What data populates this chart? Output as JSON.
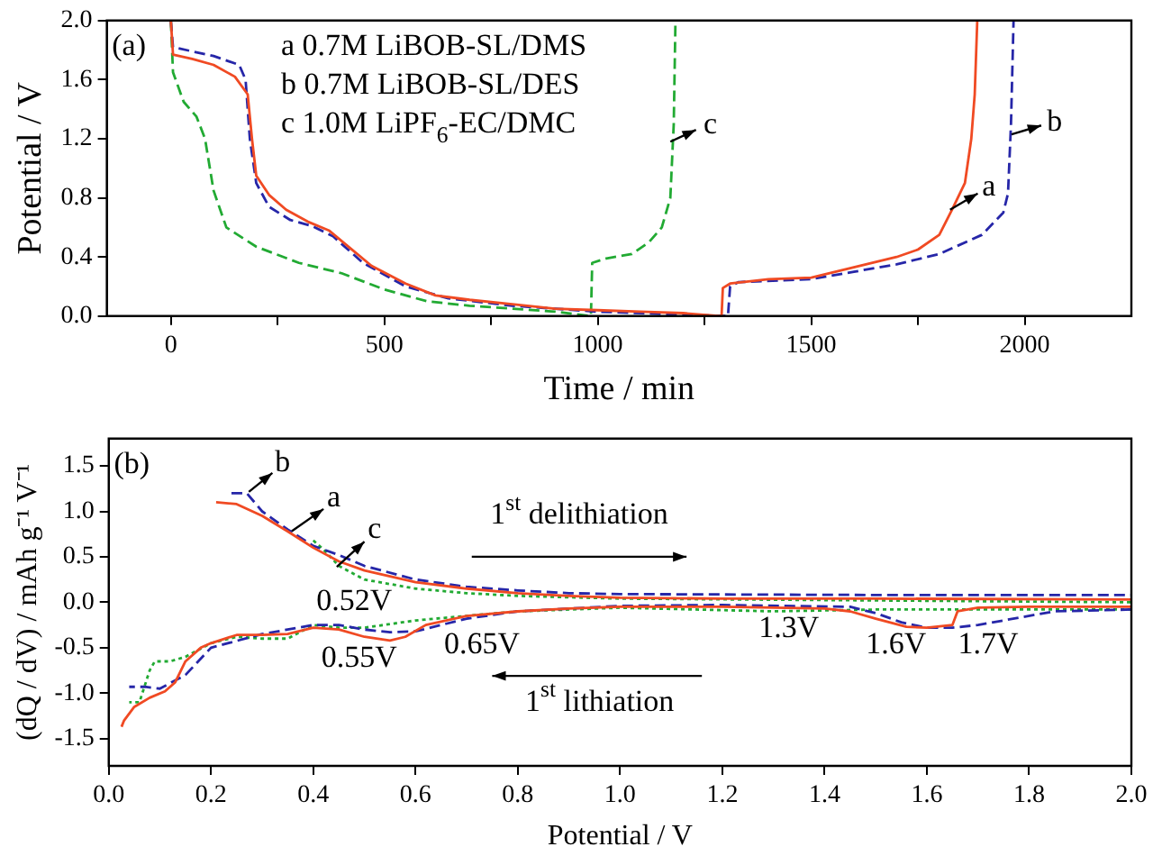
{
  "chart_data": [
    {
      "type": "line",
      "xlabel": "Time / min",
      "ylabel": "Potential / V",
      "xlim": [
        -150,
        2250
      ],
      "ylim": [
        0,
        2.0
      ],
      "xticks": [
        0,
        500,
        1000,
        1500,
        2000,
        {
          "value": 250,
          "label": null
        },
        {
          "value": 750,
          "label": null
        },
        {
          "value": 1250,
          "label": null
        },
        {
          "value": 1750,
          "label": null
        }
      ],
      "yticks": [
        {
          "value": 0,
          "label": "0.0"
        },
        0.4,
        0.8,
        1.2,
        1.6,
        {
          "value": 2.0,
          "label": "2.0"
        }
      ],
      "legend": false,
      "grid": false,
      "annotations": [
        "(a)",
        "a 0.7M LiBOB-SL/DMS",
        "b 0.7M LiBOB-SL/DES",
        "c 1.0M LiPF$_{6}$-EC/DMC",
        "c",
        "b",
        "a"
      ],
      "series": [
        {
          "color": "#f04a23",
          "line_style": "solid",
          "x": [
            0,
            5,
            50,
            100,
            150,
            180,
            190,
            200,
            230,
            270,
            320,
            370,
            420,
            470,
            550,
            620,
            700,
            800,
            900,
            1000,
            1100,
            1200,
            1290,
            1293,
            1310,
            1400,
            1500,
            1600,
            1700,
            1750,
            1800,
            1830,
            1860,
            1875,
            1883,
            1889
          ],
          "values": [
            2.0,
            1.77,
            1.74,
            1.7,
            1.62,
            1.5,
            1.2,
            0.95,
            0.82,
            0.72,
            0.64,
            0.58,
            0.46,
            0.34,
            0.22,
            0.14,
            0.11,
            0.08,
            0.05,
            0.04,
            0.03,
            0.02,
            0.0,
            0.19,
            0.22,
            0.25,
            0.26,
            0.33,
            0.4,
            0.45,
            0.55,
            0.72,
            0.9,
            1.2,
            1.5,
            2.0
          ]
        },
        {
          "color": "#2626a8",
          "line_style": "dashed",
          "x": [
            0,
            5,
            100,
            160,
            175,
            185,
            200,
            230,
            280,
            330,
            380,
            450,
            550,
            650,
            800,
            1000,
            1200,
            1305,
            1310,
            1330,
            1500,
            1600,
            1700,
            1800,
            1900,
            1950,
            1961,
            1968,
            1974
          ],
          "values": [
            2.0,
            1.82,
            1.76,
            1.7,
            1.6,
            1.2,
            0.9,
            0.74,
            0.65,
            0.61,
            0.54,
            0.36,
            0.2,
            0.12,
            0.07,
            0.03,
            0.01,
            0.0,
            0.2,
            0.23,
            0.25,
            0.3,
            0.35,
            0.42,
            0.55,
            0.7,
            0.83,
            1.3,
            2.0
          ]
        },
        {
          "color": "#22aa33",
          "line_style": "dashed",
          "x": [
            0,
            5,
            30,
            60,
            80,
            100,
            130,
            200,
            300,
            400,
            500,
            600,
            700,
            800,
            900,
            984,
            987,
            1020,
            1080,
            1120,
            1150,
            1170,
            1178,
            1182
          ],
          "values": [
            2.0,
            1.65,
            1.45,
            1.35,
            1.2,
            0.85,
            0.6,
            0.47,
            0.36,
            0.29,
            0.18,
            0.1,
            0.07,
            0.05,
            0.03,
            0.0,
            0.36,
            0.39,
            0.42,
            0.5,
            0.6,
            0.8,
            1.3,
            2.0
          ]
        }
      ]
    },
    {
      "type": "line",
      "xlabel": "Potential / V",
      "ylabel": "(dQ / dV) / mAh g⁻¹ V⁻¹",
      "xlim": [
        0,
        2.0
      ],
      "ylim": [
        -1.8,
        1.8
      ],
      "xticks": [
        {
          "value": 0,
          "label": "0.0"
        },
        0.2,
        0.4,
        0.6,
        0.8,
        {
          "value": 1,
          "label": "1.0"
        },
        1.2,
        1.4,
        1.6,
        1.8,
        {
          "value": 2,
          "label": "2.0"
        }
      ],
      "yticks": [
        -1.5,
        {
          "value": -1,
          "label": "-1.0"
        },
        -0.5,
        {
          "value": 0,
          "label": "0.0"
        },
        0.5,
        {
          "value": 1,
          "label": "1.0"
        },
        1.5
      ],
      "legend": false,
      "grid": false,
      "annotations": [
        "(b)",
        "1$^{st}$ delithiation",
        "1$^{st}$ lithiation",
        "0.52V",
        "0.55V",
        "0.65V",
        "1.3V",
        "1.6V",
        "1.7V",
        "b",
        "a",
        "c"
      ],
      "series": [
        {
          "color": "#f04a23",
          "line_style": "solid",
          "x": [
            2.0,
            1.8,
            1.7,
            1.66,
            1.65,
            1.6,
            1.56,
            1.5,
            1.45,
            1.4,
            1.2,
            1.0,
            0.9,
            0.8,
            0.7,
            0.62,
            0.58,
            0.55,
            0.5,
            0.45,
            0.4,
            0.35,
            0.3,
            0.25,
            0.2,
            0.18,
            0.15,
            0.13,
            0.11,
            0.08,
            0.05,
            0.03,
            0.025,
            null,
            0.21,
            0.25,
            0.3,
            0.35,
            0.4,
            0.45,
            0.5,
            0.6,
            0.7,
            0.8,
            0.9,
            1.0,
            1.2,
            1.5,
            2.0
          ],
          "values": [
            -0.05,
            -0.05,
            -0.06,
            -0.1,
            -0.25,
            -0.28,
            -0.27,
            -0.18,
            -0.1,
            -0.07,
            -0.05,
            -0.05,
            -0.07,
            -0.1,
            -0.15,
            -0.25,
            -0.38,
            -0.42,
            -0.38,
            -0.3,
            -0.28,
            -0.35,
            -0.36,
            -0.36,
            -0.45,
            -0.5,
            -0.65,
            -0.88,
            -0.98,
            -1.05,
            -1.15,
            -1.3,
            -1.37,
            null,
            1.1,
            1.08,
            0.95,
            0.78,
            0.6,
            0.45,
            0.35,
            0.22,
            0.15,
            0.1,
            0.07,
            0.05,
            0.04,
            0.04,
            0.03
          ]
        },
        {
          "color": "#2626a8",
          "line_style": "dashed",
          "x": [
            2.0,
            1.85,
            1.75,
            1.7,
            1.65,
            1.6,
            1.55,
            1.5,
            1.45,
            1.2,
            1.0,
            0.8,
            0.7,
            0.65,
            0.6,
            0.55,
            0.5,
            0.45,
            0.4,
            0.3,
            0.2,
            0.15,
            0.1,
            0.07,
            0.04,
            null,
            0.24,
            0.27,
            0.3,
            0.35,
            0.4,
            0.45,
            0.5,
            0.6,
            0.7,
            0.8,
            0.9,
            1.0,
            1.5,
            2.0
          ],
          "values": [
            -0.08,
            -0.1,
            -0.2,
            -0.25,
            -0.28,
            -0.28,
            -0.22,
            -0.12,
            -0.05,
            -0.03,
            -0.04,
            -0.1,
            -0.18,
            -0.25,
            -0.32,
            -0.33,
            -0.3,
            -0.25,
            -0.25,
            -0.35,
            -0.5,
            -0.8,
            -0.95,
            -0.93,
            -0.93,
            null,
            1.2,
            1.2,
            1.0,
            0.8,
            0.62,
            0.52,
            0.4,
            0.25,
            0.17,
            0.13,
            0.1,
            0.09,
            0.08,
            0.08
          ]
        },
        {
          "color": "#22aa33",
          "line_style": "dotted",
          "x": [
            2.0,
            1.5,
            1.3,
            1.0,
            0.8,
            0.6,
            0.5,
            0.45,
            0.4,
            0.35,
            0.3,
            0.25,
            0.2,
            0.15,
            0.12,
            0.09,
            0.08,
            0.06,
            0.04,
            null,
            0.4,
            0.42,
            0.45,
            0.5,
            0.6,
            0.7,
            0.8,
            1.0,
            1.5,
            2.0
          ],
          "values": [
            -0.08,
            -0.08,
            -0.1,
            -0.06,
            -0.1,
            -0.2,
            -0.28,
            -0.28,
            -0.25,
            -0.4,
            -0.4,
            -0.38,
            -0.45,
            -0.6,
            -0.65,
            -0.65,
            -0.75,
            -1.1,
            -1.1,
            null,
            0.68,
            0.58,
            0.4,
            0.25,
            0.15,
            0.1,
            0.07,
            0.04,
            0.02,
            0.0
          ]
        }
      ]
    }
  ]
}
